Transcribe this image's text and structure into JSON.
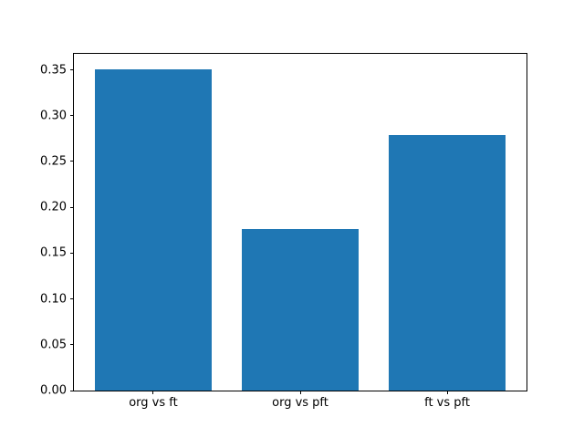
{
  "chart_data": {
    "type": "bar",
    "title": "",
    "xlabel": "",
    "ylabel": "",
    "categories": [
      "org vs ft",
      "org vs pft",
      "ft vs pft"
    ],
    "values": [
      0.351,
      0.176,
      0.279
    ],
    "bar_color": "#1f77b4",
    "background_color": "#ffffff",
    "spine_color": "#000000",
    "ylim": [
      0,
      0.3675
    ],
    "xlim": [
      -0.54,
      2.54
    ],
    "bar_width_data_units": 0.8,
    "ytick_values": [
      0.0,
      0.05,
      0.1,
      0.15,
      0.2,
      0.25,
      0.3,
      0.35
    ],
    "ytick_labels": [
      "0.00",
      "0.05",
      "0.10",
      "0.15",
      "0.20",
      "0.25",
      "0.30",
      "0.35"
    ],
    "grid": false,
    "legend": false
  }
}
